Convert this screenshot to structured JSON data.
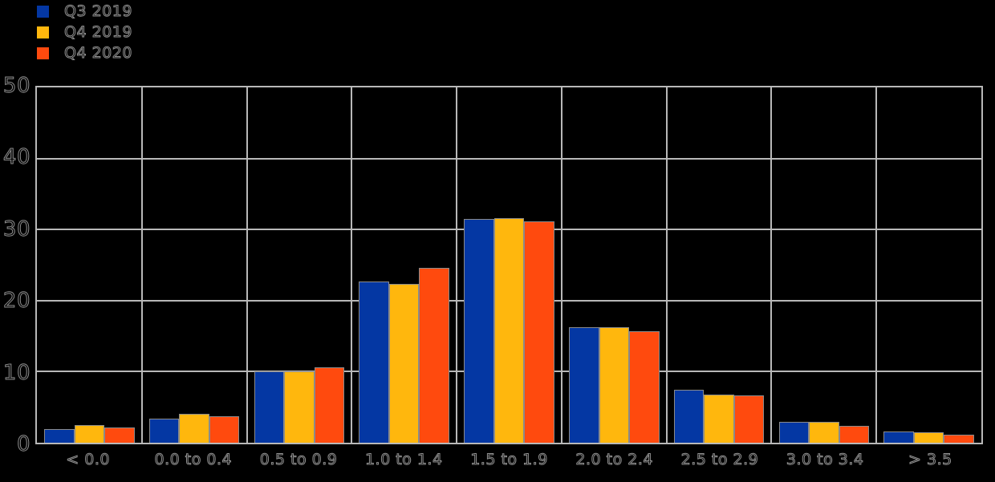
{
  "chart_data": {
    "type": "bar",
    "title": "",
    "xlabel": "",
    "ylabel": "",
    "categories": [
      "< 0.0",
      "0.0 to 0.4",
      "0.5 to 0.9",
      "1.0 to 1.4",
      "1.5 to 1.9",
      "2.0 to 2.4",
      "2.5 to 2.9",
      "3.0 to 3.4",
      "> 3.5"
    ],
    "series": [
      {
        "name": "Q3 2019",
        "color": "#0437a3",
        "values": [
          1.9,
          3.4,
          10.1,
          22.7,
          31.5,
          16.3,
          7.4,
          2.9,
          1.6
        ]
      },
      {
        "name": "Q4 2019",
        "color": "#ffb70d",
        "values": [
          2.5,
          4.1,
          10.0,
          22.4,
          31.6,
          16.2,
          6.8,
          2.9,
          1.5
        ]
      },
      {
        "name": "Q4 2020",
        "color": "#ff4a0e",
        "values": [
          2.2,
          3.7,
          10.6,
          24.6,
          31.1,
          15.7,
          6.7,
          2.4,
          1.1
        ]
      }
    ],
    "ylim": [
      0,
      50
    ],
    "yticks": [
      0,
      10,
      20,
      30,
      40,
      50
    ],
    "grid": true,
    "legend_position": "top-left",
    "colors": {
      "background": "#000000",
      "gridline": "#b8b8b8",
      "axis_text": "#8f8f8f",
      "bar_edge": "#8a8a8a"
    }
  }
}
